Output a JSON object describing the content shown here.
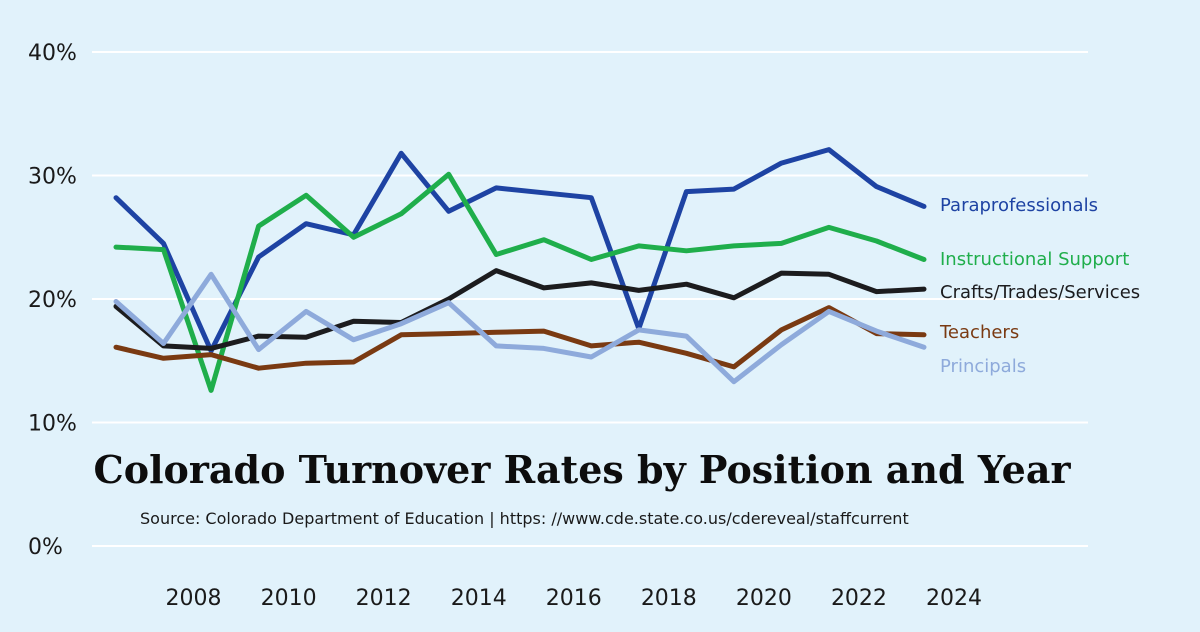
{
  "chart_data": {
    "type": "line",
    "title": "Colorado Turnover Rates by Position and Year",
    "subtitle": "Source: Colorado Department of Education | https: //www.cde.state.co.us/cdereveal/staffcurrent",
    "xlabel": "",
    "ylabel": "",
    "x": [
      2007,
      2008,
      2009,
      2010,
      2011,
      2012,
      2013,
      2014,
      2015,
      2016,
      2017,
      2018,
      2019,
      2020,
      2021,
      2022,
      2023,
      2024
    ],
    "x_ticks": [
      2008,
      2010,
      2012,
      2014,
      2016,
      2018,
      2020,
      2022,
      2024
    ],
    "x_tick_labels": [
      "2008",
      "2010",
      "2012",
      "2014",
      "2016",
      "2018",
      "2020",
      "2022",
      "2024"
    ],
    "ylim": [
      0,
      40
    ],
    "y_ticks": [
      0,
      10,
      20,
      30,
      40
    ],
    "y_tick_labels": [
      "0%",
      "10%",
      "20%",
      "30%",
      "40%"
    ],
    "grid": true,
    "legend": "right, labels at line ends",
    "background": "#e1f2fb",
    "series": [
      {
        "name": "Paraprofessionals",
        "color": "#1e43a3",
        "values": [
          28.2,
          24.5,
          15.8,
          23.4,
          26.1,
          25.2,
          31.8,
          27.1,
          29.0,
          28.6,
          28.2,
          17.6,
          28.7,
          28.9,
          31.0,
          32.1,
          29.1,
          27.5
        ]
      },
      {
        "name": "Instructional Support",
        "color": "#1fae4b",
        "values": [
          24.2,
          24.0,
          12.6,
          25.9,
          28.4,
          25.0,
          26.9,
          30.1,
          23.6,
          24.8,
          23.2,
          24.3,
          23.9,
          24.3,
          24.5,
          25.8,
          24.7,
          23.2
        ]
      },
      {
        "name": "Crafts/Trades/Services",
        "color": "#1c1c1e",
        "values": [
          19.4,
          16.2,
          16.0,
          17.0,
          16.9,
          18.2,
          18.1,
          20.0,
          22.3,
          20.9,
          21.3,
          20.7,
          21.2,
          20.1,
          22.1,
          22.0,
          20.6,
          20.8
        ]
      },
      {
        "name": "Teachers",
        "color": "#7a3a12",
        "values": [
          16.1,
          15.2,
          15.5,
          14.4,
          14.8,
          14.9,
          17.1,
          17.2,
          17.3,
          17.4,
          16.2,
          16.5,
          15.6,
          14.5,
          17.5,
          19.3,
          17.2,
          17.1
        ]
      },
      {
        "name": "Principals",
        "color": "#8eaadb",
        "values": [
          19.8,
          16.4,
          22.0,
          15.9,
          19.0,
          16.7,
          18.0,
          19.7,
          16.2,
          16.0,
          15.3,
          17.5,
          17.0,
          13.3,
          16.3,
          19.0,
          17.4,
          16.1
        ]
      }
    ]
  }
}
